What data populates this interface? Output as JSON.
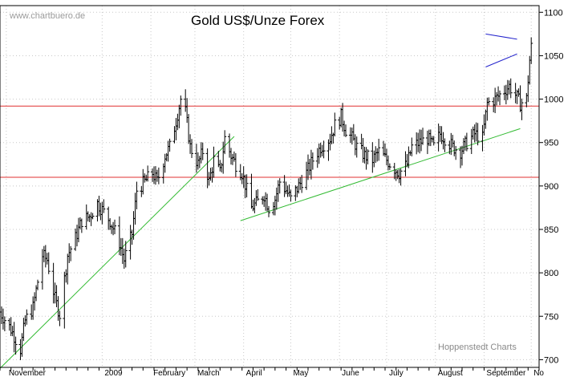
{
  "watermark": "www.chartbuero.de",
  "credit": "Hoppenstedt Charts",
  "chart_data": {
    "type": "ohlc-bar",
    "title": "Gold US$/Unze Forex",
    "xlabel": "",
    "ylabel": "",
    "y_axis_side": "right",
    "yticks": [
      700,
      750,
      800,
      850,
      900,
      950,
      1000,
      1050,
      1100
    ],
    "ylim": [
      680,
      1108
    ],
    "xlim": [
      "2008-10-28",
      "2009-10-06"
    ],
    "month_labels": [
      {
        "label": "November",
        "date": "2008-11-01"
      },
      {
        "label": "2009",
        "date": "2009-01-01"
      },
      {
        "label": "February",
        "date": "2009-02-01"
      },
      {
        "label": "March",
        "date": "2009-03-01"
      },
      {
        "label": "April",
        "date": "2009-04-01"
      },
      {
        "label": "May",
        "date": "2009-05-01"
      },
      {
        "label": "June",
        "date": "2009-06-01"
      },
      {
        "label": "July",
        "date": "2009-07-01"
      },
      {
        "label": "August",
        "date": "2009-08-01"
      },
      {
        "label": "September",
        "date": "2009-09-01"
      },
      {
        "label": "No",
        "date": "2009-10-01"
      }
    ],
    "horizontal_lines": [
      {
        "value": 992,
        "color": "#e03030"
      },
      {
        "value": 910,
        "color": "#e03030"
      }
    ],
    "trendlines": [
      {
        "from": {
          "date": "2008-10-28",
          "value": 690
        },
        "to": {
          "date": "2009-03-26",
          "value": 957
        },
        "color": "#33bb33"
      },
      {
        "from": {
          "date": "2009-03-30",
          "value": 860
        },
        "to": {
          "date": "2009-09-24",
          "value": 966
        },
        "color": "#33bb33"
      },
      {
        "from": {
          "date": "2009-09-02",
          "value": 1075
        },
        "to": {
          "date": "2009-09-22",
          "value": 1069
        },
        "color": "#2222cc"
      },
      {
        "from": {
          "date": "2009-09-02",
          "value": 1037
        },
        "to": {
          "date": "2009-09-22",
          "value": 1052
        },
        "color": "#2222cc"
      }
    ],
    "price_path": [
      [
        "2008-10-28",
        755
      ],
      [
        "2008-11-04",
        735
      ],
      [
        "2008-11-10",
        712
      ],
      [
        "2008-11-13",
        745
      ],
      [
        "2008-11-18",
        760
      ],
      [
        "2008-11-24",
        820
      ],
      [
        "2008-11-27",
        815
      ],
      [
        "2008-12-02",
        770
      ],
      [
        "2008-12-05",
        752
      ],
      [
        "2008-12-10",
        820
      ],
      [
        "2008-12-15",
        840
      ],
      [
        "2008-12-19",
        860
      ],
      [
        "2008-12-24",
        865
      ],
      [
        "2008-12-29",
        880
      ],
      [
        "2009-01-02",
        870
      ],
      [
        "2009-01-06",
        860
      ],
      [
        "2009-01-12",
        835
      ],
      [
        "2009-01-15",
        815
      ],
      [
        "2009-01-20",
        845
      ],
      [
        "2009-01-23",
        895
      ],
      [
        "2009-01-28",
        905
      ],
      [
        "2009-02-02",
        915
      ],
      [
        "2009-02-05",
        905
      ],
      [
        "2009-02-10",
        935
      ],
      [
        "2009-02-13",
        945
      ],
      [
        "2009-02-17",
        975
      ],
      [
        "2009-02-20",
        1000
      ],
      [
        "2009-02-23",
        985
      ],
      [
        "2009-02-26",
        945
      ],
      [
        "2009-03-03",
        925
      ],
      [
        "2009-03-06",
        940
      ],
      [
        "2009-03-10",
        905
      ],
      [
        "2009-03-13",
        930
      ],
      [
        "2009-03-17",
        915
      ],
      [
        "2009-03-20",
        955
      ],
      [
        "2009-03-24",
        935
      ],
      [
        "2009-03-27",
        925
      ],
      [
        "2009-03-31",
        915
      ],
      [
        "2009-04-03",
        895
      ],
      [
        "2009-04-06",
        875
      ],
      [
        "2009-04-09",
        880
      ],
      [
        "2009-04-14",
        890
      ],
      [
        "2009-04-17",
        875
      ],
      [
        "2009-04-21",
        885
      ],
      [
        "2009-04-24",
        905
      ],
      [
        "2009-04-28",
        895
      ],
      [
        "2009-05-01",
        885
      ],
      [
        "2009-05-06",
        900
      ],
      [
        "2009-05-11",
        915
      ],
      [
        "2009-05-15",
        930
      ],
      [
        "2009-05-20",
        945
      ],
      [
        "2009-05-26",
        955
      ],
      [
        "2009-05-29",
        970
      ],
      [
        "2009-06-02",
        980
      ],
      [
        "2009-06-05",
        965
      ],
      [
        "2009-06-09",
        955
      ],
      [
        "2009-06-12",
        945
      ],
      [
        "2009-06-17",
        935
      ],
      [
        "2009-06-22",
        930
      ],
      [
        "2009-06-26",
        940
      ],
      [
        "2009-07-01",
        930
      ],
      [
        "2009-07-06",
        920
      ],
      [
        "2009-07-09",
        915
      ],
      [
        "2009-07-14",
        925
      ],
      [
        "2009-07-17",
        945
      ],
      [
        "2009-07-22",
        950
      ],
      [
        "2009-07-27",
        955
      ],
      [
        "2009-07-31",
        945
      ],
      [
        "2009-08-04",
        960
      ],
      [
        "2009-08-07",
        955
      ],
      [
        "2009-08-12",
        945
      ],
      [
        "2009-08-17",
        940
      ],
      [
        "2009-08-21",
        950
      ],
      [
        "2009-08-26",
        960
      ],
      [
        "2009-08-31",
        955
      ],
      [
        "2009-09-03",
        995
      ],
      [
        "2009-09-08",
        1000
      ],
      [
        "2009-09-11",
        1005
      ],
      [
        "2009-09-14",
        1010
      ],
      [
        "2009-09-17",
        1015
      ],
      [
        "2009-09-21",
        1005
      ],
      [
        "2009-09-24",
        995
      ],
      [
        "2009-09-28",
        1000
      ],
      [
        "2009-09-30",
        1045
      ],
      [
        "2009-10-01",
        1060
      ],
      [
        "2009-10-02",
        1055
      ]
    ]
  },
  "colors": {
    "bars": "#000000",
    "gridline": "#c8c8c8",
    "axis": "#000000",
    "resistance": "#e03030",
    "trend_green": "#33bb33",
    "triangle_blue": "#2222cc"
  }
}
